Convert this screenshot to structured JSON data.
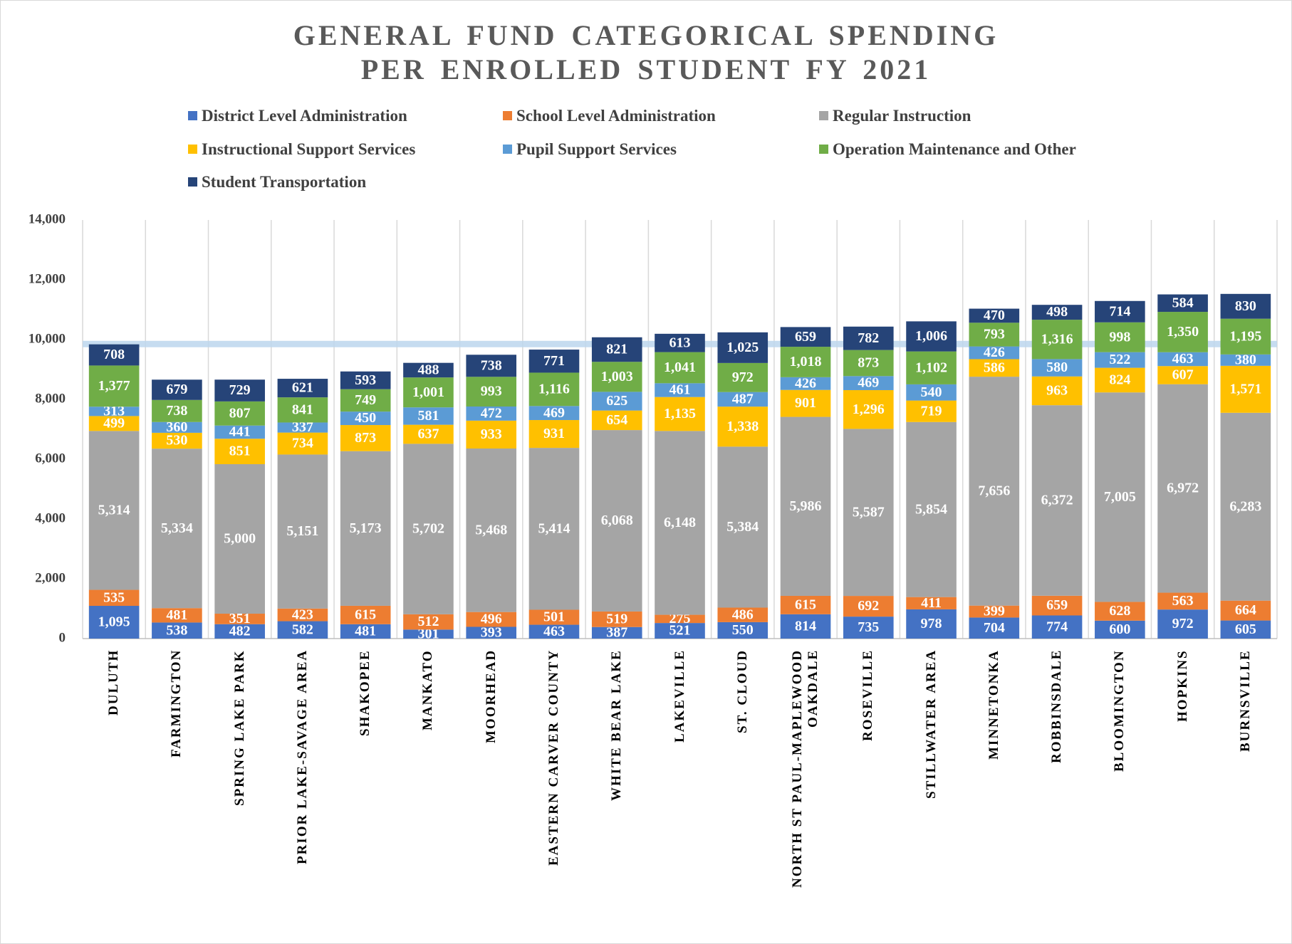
{
  "chart_data": {
    "type": "stacked_bar",
    "title": "GENERAL FUND CATEGORICAL SPENDING PER ENROLLED STUDENT FY 2021",
    "categories": [
      "DULUTH",
      "FARMINGTON",
      "SPRING LAKE PARK",
      "PRIOR LAKE-SAVAGE AREA",
      "SHAKOPEE",
      "MANKATO",
      "MOORHEAD",
      "EASTERN CARVER COUNTY",
      "WHITE BEAR LAKE",
      "LAKEVILLE",
      "ST. CLOUD",
      "NORTH ST PAUL-MAPLEWOOD OAKDALE",
      "ROSEVILLE",
      "STILLWATER AREA",
      "MINNETONKA",
      "ROBBINSDALE",
      "BLOOMINGTON",
      "HOPKINS",
      "BURNSVILLE"
    ],
    "series": [
      {
        "name": "District Level Administration",
        "color": "#4472c4",
        "values": [
          1095,
          538,
          482,
          582,
          481,
          301,
          393,
          463,
          387,
          521,
          550,
          814,
          735,
          978,
          704,
          774,
          600,
          972,
          605
        ],
        "value_labels": [
          "1,095",
          "538",
          "482",
          "582",
          "481",
          "301",
          "393",
          "463",
          "387",
          "521",
          "550",
          "814",
          "735",
          "978",
          "704",
          "774",
          "600",
          "972",
          "605"
        ]
      },
      {
        "name": "School Level Administration",
        "color": "#ed7d31",
        "values": [
          535,
          481,
          351,
          423,
          615,
          512,
          496,
          501,
          519,
          275,
          486,
          615,
          692,
          411,
          399,
          659,
          628,
          563,
          664
        ],
        "value_labels": [
          "535",
          "481",
          "351",
          "423",
          "615",
          "512",
          "496",
          "501",
          "519",
          "275",
          "486",
          "615",
          "692",
          "411",
          "399",
          "659",
          "628",
          "563",
          "664"
        ]
      },
      {
        "name": "Regular Instruction",
        "color": "#a5a5a5",
        "values": [
          5314,
          5334,
          5000,
          5151,
          5173,
          5702,
          5468,
          5414,
          6068,
          6148,
          5384,
          5986,
          5587,
          5854,
          7656,
          6372,
          7005,
          6972,
          6283
        ],
        "value_labels": [
          "5,314",
          "5,334",
          "5,000",
          "5,151",
          "5,173",
          "5,702",
          "5,468",
          "5,414",
          "6,068",
          "6,148",
          "5,384",
          "5,986",
          "5,587",
          "5,854",
          "7,656",
          "6,372",
          "7,005",
          "6,972",
          "6,283"
        ]
      },
      {
        "name": "Instructional Support Services",
        "color": "#ffc000",
        "values": [
          499,
          530,
          851,
          734,
          873,
          637,
          933,
          931,
          654,
          1135,
          1338,
          901,
          1296,
          719,
          586,
          963,
          824,
          607,
          1571
        ],
        "value_labels": [
          "499",
          "530",
          "851",
          "734",
          "873",
          "637",
          "933",
          "931",
          "654",
          "1,135",
          "1,338",
          "901",
          "1,296",
          "719",
          "586",
          "963",
          "824",
          "607",
          "1,571"
        ]
      },
      {
        "name": "Pupil Support Services",
        "color": "#5b9bd5",
        "values": [
          313,
          360,
          441,
          337,
          450,
          581,
          472,
          469,
          625,
          461,
          487,
          426,
          469,
          540,
          426,
          580,
          522,
          463,
          380
        ],
        "value_labels": [
          "313",
          "360",
          "441",
          "337",
          "450",
          "581",
          "472",
          "469",
          "625",
          "461",
          "487",
          "426",
          "469",
          "540",
          "426",
          "580",
          "522",
          "463",
          "380"
        ]
      },
      {
        "name": "Operation Maintenance and Other",
        "color": "#70ad47",
        "values": [
          1377,
          738,
          807,
          841,
          749,
          1001,
          993,
          1116,
          1003,
          1041,
          972,
          1018,
          873,
          1102,
          793,
          1316,
          998,
          1350,
          1195
        ],
        "value_labels": [
          "1,377",
          "738",
          "807",
          "841",
          "749",
          "1,001",
          "993",
          "1,116",
          "1,003",
          "1,041",
          "972",
          "1,018",
          "873",
          "1,102",
          "793",
          "1,316",
          "998",
          "1,350",
          "1,195"
        ]
      },
      {
        "name": "Student Transportation",
        "color": "#264478",
        "values": [
          708,
          679,
          729,
          621,
          593,
          488,
          738,
          771,
          821,
          613,
          1025,
          659,
          782,
          1006,
          470,
          498,
          714,
          584,
          830
        ],
        "value_labels": [
          "708",
          "679",
          "729",
          "621",
          "593",
          "488",
          "738",
          "771",
          "821",
          "613",
          "1,025",
          "659",
          "782",
          "1,006",
          "470",
          "498",
          "714",
          "584",
          "830"
        ]
      }
    ],
    "ylim": [
      0,
      14000
    ],
    "yticks": [
      0,
      {
        "value": 2000,
        "label": "2,000"
      },
      {
        "value": 4000,
        "label": "4,000"
      },
      {
        "value": 6000,
        "label": "6,000"
      },
      {
        "value": 8000,
        "label": "8,000"
      },
      {
        "value": 10000,
        "label": "10,000"
      },
      {
        "value": 12000,
        "label": "12,000"
      },
      {
        "value": 14000,
        "label": "14,000"
      }
    ],
    "grid": "vertical",
    "reference_line": 9850
  }
}
